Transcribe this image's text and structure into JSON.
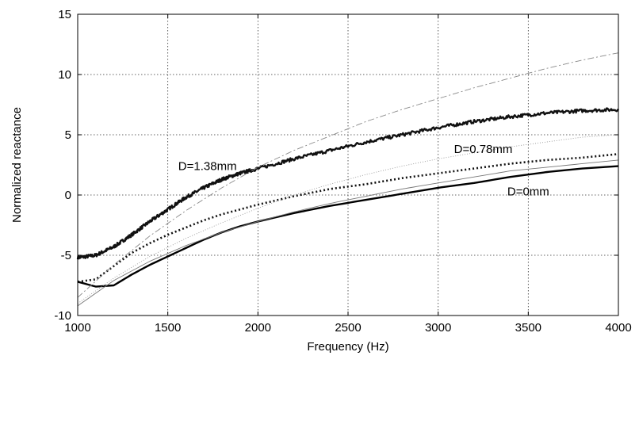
{
  "chart_data": {
    "type": "line",
    "title": "",
    "xlabel": "Frequency (Hz)",
    "ylabel": "Normalized reactance",
    "xlim": [
      1000,
      4000
    ],
    "ylim": [
      -10,
      15
    ],
    "xticks": [
      1000,
      1500,
      2000,
      2500,
      3000,
      3500,
      4000
    ],
    "yticks": [
      -10,
      -5,
      0,
      5,
      10,
      15
    ],
    "grid": true,
    "legend": "none",
    "annotations": [
      {
        "text": "D=1.38mm",
        "x": 1720,
        "y": 2.4
      },
      {
        "text": "D=0.78mm",
        "x": 3250,
        "y": 3.8
      },
      {
        "text": "D=0mm",
        "x": 3500,
        "y": 0.3
      }
    ],
    "series": [
      {
        "style": "thick-noisy",
        "color": "#111111",
        "x": [
          1000,
          1100,
          1200,
          1300,
          1400,
          1500,
          1600,
          1700,
          1800,
          1900,
          2000,
          2200,
          2400,
          2600,
          2800,
          3000,
          3200,
          3400,
          3600,
          3800,
          4000
        ],
        "y": [
          -5.2,
          -5.0,
          -4.3,
          -3.3,
          -2.2,
          -1.2,
          -0.2,
          0.6,
          1.3,
          1.8,
          2.2,
          3.0,
          3.7,
          4.4,
          5.0,
          5.6,
          6.1,
          6.5,
          6.8,
          7.0,
          7.1
        ]
      },
      {
        "style": "dotted",
        "color": "#111111",
        "x": [
          1000,
          1100,
          1200,
          1300,
          1400,
          1500,
          1600,
          1700,
          1800,
          1900,
          2000,
          2200,
          2400,
          2600,
          2800,
          3000,
          3200,
          3400,
          3600,
          3800,
          4000
        ],
        "y": [
          -7.2,
          -7.0,
          -5.9,
          -4.8,
          -4.0,
          -3.3,
          -2.7,
          -2.1,
          -1.6,
          -1.2,
          -0.8,
          -0.1,
          0.5,
          0.9,
          1.4,
          1.8,
          2.2,
          2.6,
          2.9,
          3.1,
          3.4
        ]
      },
      {
        "style": "solid-thick",
        "color": "#000000",
        "x": [
          1000,
          1100,
          1200,
          1300,
          1400,
          1500,
          1600,
          1700,
          1800,
          1900,
          2000,
          2200,
          2400,
          2600,
          2800,
          3000,
          3200,
          3400,
          3600,
          3800,
          4000
        ],
        "y": [
          -7.2,
          -7.6,
          -7.5,
          -6.6,
          -5.8,
          -5.1,
          -4.4,
          -3.7,
          -3.1,
          -2.6,
          -2.2,
          -1.5,
          -0.9,
          -0.4,
          0.1,
          0.6,
          1.0,
          1.5,
          1.9,
          2.2,
          2.4
        ]
      },
      {
        "style": "dash-dot",
        "color": "#888888",
        "x": [
          1000,
          1200,
          1400,
          1600,
          1800,
          2000,
          2200,
          2400,
          2600,
          2800,
          3000,
          3200,
          3400,
          3600,
          3800,
          4000
        ],
        "y": [
          -8.5,
          -5.8,
          -3.4,
          -1.3,
          0.6,
          2.3,
          3.7,
          4.9,
          6.1,
          7.1,
          8.0,
          8.9,
          9.7,
          10.5,
          11.2,
          11.8
        ]
      },
      {
        "style": "thin-dotted",
        "color": "#999999",
        "x": [
          1000,
          1200,
          1400,
          1600,
          1800,
          2000,
          2200,
          2400,
          2600,
          2800,
          3000,
          3200,
          3400,
          3600,
          3800,
          4000
        ],
        "y": [
          -9.0,
          -6.9,
          -5.1,
          -3.6,
          -2.3,
          -1.1,
          0.0,
          0.9,
          1.7,
          2.4,
          3.0,
          3.5,
          4.0,
          4.4,
          4.8,
          5.0
        ]
      },
      {
        "style": "thin-solid",
        "color": "#777777",
        "x": [
          1000,
          1200,
          1400,
          1600,
          1800,
          2000,
          2200,
          2400,
          2600,
          2800,
          3000,
          3200,
          3400,
          3600,
          3800,
          4000
        ],
        "y": [
          -9.2,
          -7.1,
          -5.5,
          -4.2,
          -3.1,
          -2.2,
          -1.4,
          -0.7,
          -0.1,
          0.5,
          1.0,
          1.5,
          2.0,
          2.3,
          2.6,
          2.9
        ]
      }
    ]
  }
}
